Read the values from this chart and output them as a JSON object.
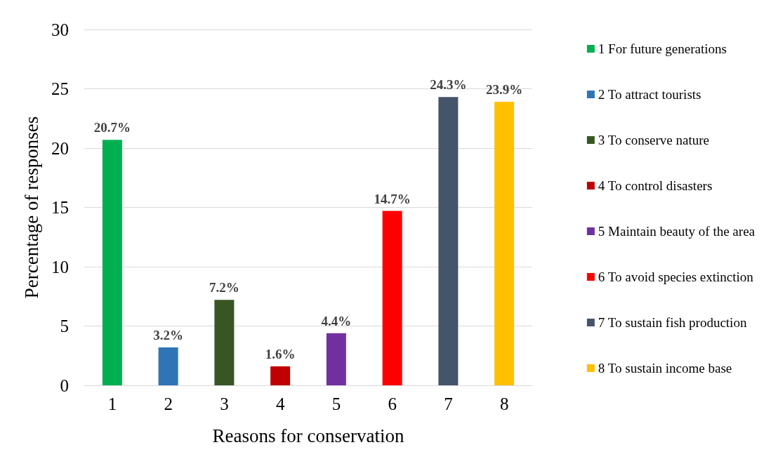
{
  "chart_data": {
    "type": "bar",
    "xlabel": "Reasons for conservation",
    "ylabel": "Percentage of responses",
    "categories": [
      "1",
      "2",
      "3",
      "4",
      "5",
      "6",
      "7",
      "8"
    ],
    "series": [
      {
        "name": "1 For future generations",
        "color": "#00b050",
        "values": [
          20.7,
          null,
          null,
          null,
          null,
          null,
          null,
          null
        ],
        "value_labels": [
          "20.7%",
          null,
          null,
          null,
          null,
          null,
          null,
          null
        ]
      },
      {
        "name": "2 To attract tourists",
        "color": "#2e75b6",
        "values": [
          null,
          3.2,
          null,
          null,
          null,
          null,
          null,
          null
        ],
        "value_labels": [
          null,
          "3.2%",
          null,
          null,
          null,
          null,
          null,
          null
        ]
      },
      {
        "name": "3 To conserve nature",
        "color": "#375623",
        "values": [
          null,
          null,
          7.2,
          null,
          null,
          null,
          null,
          null
        ],
        "value_labels": [
          null,
          null,
          "7.2%",
          null,
          null,
          null,
          null,
          null
        ]
      },
      {
        "name": "4 To control disasters",
        "color": "#c00000",
        "values": [
          null,
          null,
          null,
          1.6,
          null,
          null,
          null,
          null
        ],
        "value_labels": [
          null,
          null,
          null,
          "1.6%",
          null,
          null,
          null,
          null
        ]
      },
      {
        "name": "5 Maintain beauty of the area",
        "color": "#7030a0",
        "values": [
          null,
          null,
          null,
          null,
          4.4,
          null,
          null,
          null
        ],
        "value_labels": [
          null,
          null,
          null,
          null,
          "4.4%",
          null,
          null,
          null
        ]
      },
      {
        "name": "6 To avoid species extinction",
        "color": "#ff0000",
        "values": [
          null,
          null,
          null,
          null,
          null,
          14.7,
          null,
          null
        ],
        "value_labels": [
          null,
          null,
          null,
          null,
          null,
          "14.7%",
          null,
          null
        ]
      },
      {
        "name": "7 To sustain fish production",
        "color": "#44546a",
        "values": [
          null,
          null,
          null,
          null,
          null,
          null,
          24.3,
          null
        ],
        "value_labels": [
          null,
          null,
          null,
          null,
          null,
          null,
          "24.3%",
          null
        ]
      },
      {
        "name": "8 To sustain income base",
        "color": "#ffc000",
        "values": [
          null,
          null,
          null,
          null,
          null,
          null,
          null,
          23.9
        ],
        "value_labels": [
          null,
          null,
          null,
          null,
          null,
          null,
          null,
          "23.9%"
        ]
      }
    ],
    "ylim": [
      0,
      30
    ],
    "yticks": [
      0,
      5,
      10,
      15,
      20,
      25,
      30
    ],
    "grid": "y",
    "legend": "right"
  }
}
